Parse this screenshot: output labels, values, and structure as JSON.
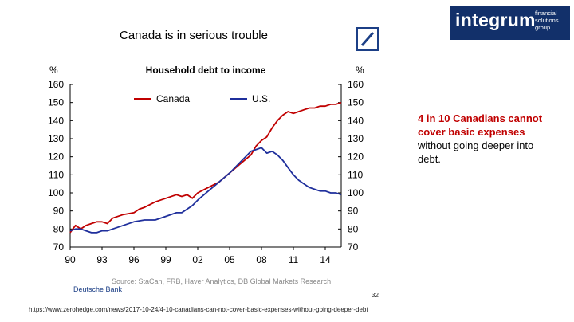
{
  "slide_title": "Canada is in serious trouble",
  "brand": {
    "name": "integrum",
    "tagline": "financial solutions group",
    "bg_color": "#12306a"
  },
  "note": {
    "highlight": "4 in 10 Canadians cannot cover basic expenses",
    "rest": " without going deeper into debt."
  },
  "footer": {
    "source": "Source: StaCan, FRB, Haver Analytics, DB Global Markets Research",
    "bank": "Deutsche Bank",
    "page": "32",
    "url": "https://www.zerohedge.com/news/2017-10-24/4-10-canadians-can-not-cover-basic-expenses-without-going-deeper-debt"
  },
  "chart_data": {
    "type": "line",
    "title": "Household debt to income",
    "ylabel_left": "%",
    "ylabel_right": "%",
    "ylim": [
      70,
      160
    ],
    "yticks": [
      70,
      80,
      90,
      100,
      110,
      120,
      130,
      140,
      150,
      160
    ],
    "xlim": [
      1990,
      2015.5
    ],
    "xticks": [
      1990,
      1993,
      1996,
      1999,
      2002,
      2005,
      2008,
      2011,
      2014
    ],
    "xtick_labels": [
      "90",
      "93",
      "96",
      "99",
      "02",
      "05",
      "08",
      "11",
      "14"
    ],
    "legend_position": "top",
    "series": [
      {
        "name": "Canada",
        "color": "#c00000",
        "x": [
          1990,
          1990.5,
          1991,
          1991.5,
          1992,
          1992.5,
          1993,
          1993.5,
          1994,
          1995,
          1996,
          1996.5,
          1997,
          1998,
          1999,
          2000,
          2000.5,
          2001,
          2001.5,
          2002,
          2003,
          2004,
          2005,
          2006,
          2007,
          2007.5,
          2008,
          2008.5,
          2009,
          2009.5,
          2010,
          2010.5,
          2011,
          2011.5,
          2012,
          2012.5,
          2013,
          2013.5,
          2014,
          2014.5,
          2015,
          2015.5
        ],
        "y": [
          78,
          82,
          80,
          82,
          83,
          84,
          84,
          83,
          86,
          88,
          89,
          91,
          92,
          95,
          97,
          99,
          98,
          99,
          97,
          100,
          103,
          106,
          111,
          116,
          121,
          126,
          129,
          131,
          136,
          140,
          143,
          145,
          144,
          145,
          146,
          147,
          147,
          148,
          148,
          149,
          149,
          150
        ]
      },
      {
        "name": "U.S.",
        "color": "#1f2f9c",
        "x": [
          1990,
          1990.5,
          1991,
          1991.5,
          1992,
          1992.5,
          1993,
          1993.5,
          1994,
          1995,
          1996,
          1997,
          1998,
          1999,
          2000,
          2000.5,
          2001,
          2001.5,
          2002,
          2003,
          2004,
          2005,
          2005.5,
          2006,
          2006.5,
          2007,
          2007.5,
          2008,
          2008.5,
          2009,
          2009.5,
          2010,
          2010.5,
          2011,
          2011.5,
          2012,
          2012.5,
          2013,
          2013.5,
          2014,
          2014.5,
          2015,
          2015.5
        ],
        "y": [
          79,
          80,
          80,
          79,
          78,
          78,
          79,
          79,
          80,
          82,
          84,
          85,
          85,
          87,
          89,
          89,
          91,
          93,
          96,
          101,
          106,
          111,
          114,
          117,
          120,
          123,
          124,
          125,
          122,
          123,
          121,
          118,
          114,
          110,
          107,
          105,
          103,
          102,
          101,
          101,
          100,
          100,
          99
        ]
      }
    ]
  }
}
